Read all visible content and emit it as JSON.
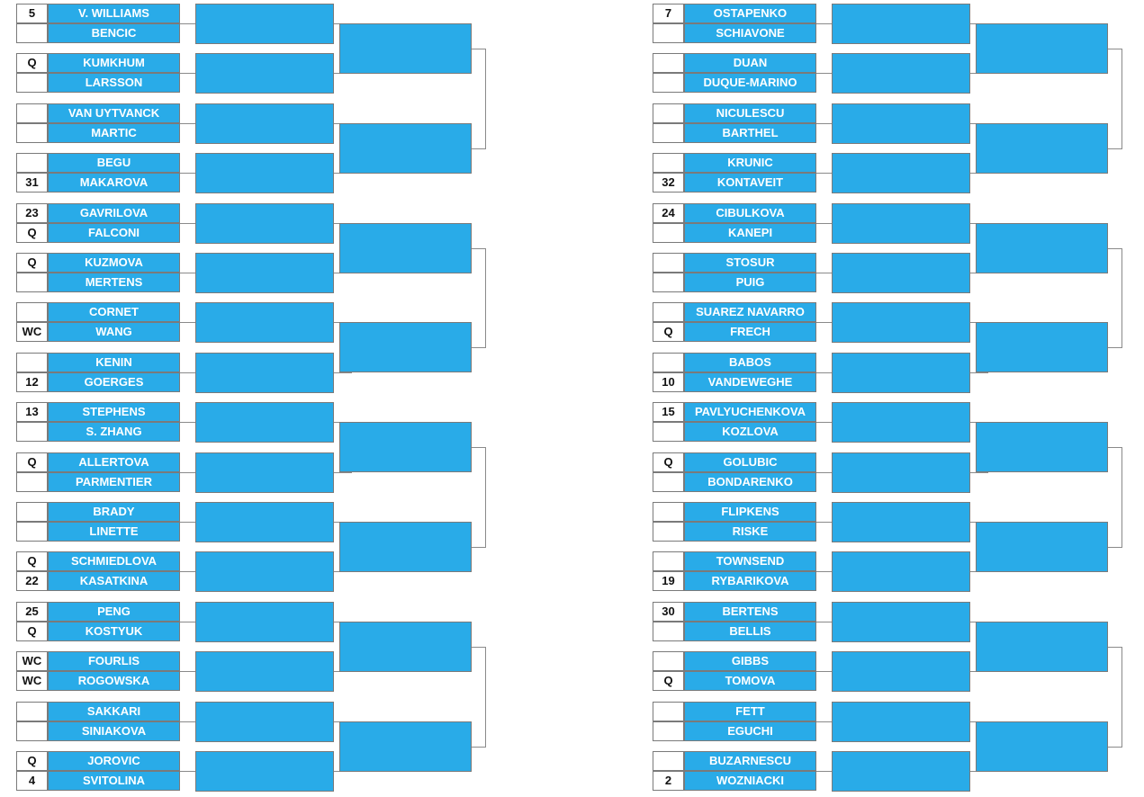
{
  "colors": {
    "player_fill": "#29abe8",
    "border": "#7a7a7a",
    "connector": "#8a8a8a",
    "player_text": "#ffffff",
    "seed_text": "#111111"
  },
  "left_section": [
    [
      {
        "seed": "5",
        "name": "V. WILLIAMS"
      },
      {
        "seed": "",
        "name": "BENCIC"
      }
    ],
    [
      {
        "seed": "Q",
        "name": "KUMKHUM"
      },
      {
        "seed": "",
        "name": "LARSSON"
      }
    ],
    [
      {
        "seed": "",
        "name": "VAN UYTVANCK"
      },
      {
        "seed": "",
        "name": "MARTIC"
      }
    ],
    [
      {
        "seed": "",
        "name": "BEGU"
      },
      {
        "seed": "31",
        "name": "MAKAROVA"
      }
    ],
    [
      {
        "seed": "23",
        "name": "GAVRILOVA"
      },
      {
        "seed": "Q",
        "name": "FALCONI"
      }
    ],
    [
      {
        "seed": "Q",
        "name": "KUZMOVA"
      },
      {
        "seed": "",
        "name": "MERTENS"
      }
    ],
    [
      {
        "seed": "",
        "name": "CORNET"
      },
      {
        "seed": "WC",
        "name": "WANG"
      }
    ],
    [
      {
        "seed": "",
        "name": "KENIN"
      },
      {
        "seed": "12",
        "name": "GOERGES"
      }
    ],
    [
      {
        "seed": "13",
        "name": "STEPHENS"
      },
      {
        "seed": "",
        "name": "S. ZHANG"
      }
    ],
    [
      {
        "seed": "Q",
        "name": "ALLERTOVA"
      },
      {
        "seed": "",
        "name": "PARMENTIER"
      }
    ],
    [
      {
        "seed": "",
        "name": "BRADY"
      },
      {
        "seed": "",
        "name": "LINETTE"
      }
    ],
    [
      {
        "seed": "Q",
        "name": "SCHMIEDLOVA"
      },
      {
        "seed": "22",
        "name": "KASATKINA"
      }
    ],
    [
      {
        "seed": "25",
        "name": "PENG"
      },
      {
        "seed": "Q",
        "name": "KOSTYUK"
      }
    ],
    [
      {
        "seed": "WC",
        "name": "FOURLIS"
      },
      {
        "seed": "WC",
        "name": "ROGOWSKA"
      }
    ],
    [
      {
        "seed": "",
        "name": "SAKKARI"
      },
      {
        "seed": "",
        "name": "SINIAKOVA"
      }
    ],
    [
      {
        "seed": "Q",
        "name": "JOROVIC"
      },
      {
        "seed": "4",
        "name": "SVITOLINA"
      }
    ]
  ],
  "right_section": [
    [
      {
        "seed": "7",
        "name": "OSTAPENKO"
      },
      {
        "seed": "",
        "name": "SCHIAVONE"
      }
    ],
    [
      {
        "seed": "",
        "name": "DUAN"
      },
      {
        "seed": "",
        "name": "DUQUE-MARINO"
      }
    ],
    [
      {
        "seed": "",
        "name": "NICULESCU"
      },
      {
        "seed": "",
        "name": "BARTHEL"
      }
    ],
    [
      {
        "seed": "",
        "name": "KRUNIC"
      },
      {
        "seed": "32",
        "name": "KONTAVEIT"
      }
    ],
    [
      {
        "seed": "24",
        "name": "CIBULKOVA"
      },
      {
        "seed": "",
        "name": "KANEPI"
      }
    ],
    [
      {
        "seed": "",
        "name": "STOSUR"
      },
      {
        "seed": "",
        "name": "PUIG"
      }
    ],
    [
      {
        "seed": "",
        "name": "SUAREZ NAVARRO"
      },
      {
        "seed": "Q",
        "name": "FRECH"
      }
    ],
    [
      {
        "seed": "",
        "name": "BABOS"
      },
      {
        "seed": "10",
        "name": "VANDEWEGHE"
      }
    ],
    [
      {
        "seed": "15",
        "name": "PAVLYUCHENKOVA"
      },
      {
        "seed": "",
        "name": "KOZLOVA"
      }
    ],
    [
      {
        "seed": "Q",
        "name": "GOLUBIC"
      },
      {
        "seed": "",
        "name": "BONDARENKO"
      }
    ],
    [
      {
        "seed": "",
        "name": "FLIPKENS"
      },
      {
        "seed": "",
        "name": "RISKE"
      }
    ],
    [
      {
        "seed": "",
        "name": "TOWNSEND"
      },
      {
        "seed": "19",
        "name": "RYBARIKOVA"
      }
    ],
    [
      {
        "seed": "30",
        "name": "BERTENS"
      },
      {
        "seed": "",
        "name": "BELLIS"
      }
    ],
    [
      {
        "seed": "",
        "name": "GIBBS"
      },
      {
        "seed": "Q",
        "name": "TOMOVA"
      }
    ],
    [
      {
        "seed": "",
        "name": "FETT"
      },
      {
        "seed": "",
        "name": "EGUCHI"
      }
    ],
    [
      {
        "seed": "",
        "name": "BUZARNESCU"
      },
      {
        "seed": "2",
        "name": "WOZNIACKI"
      }
    ]
  ]
}
